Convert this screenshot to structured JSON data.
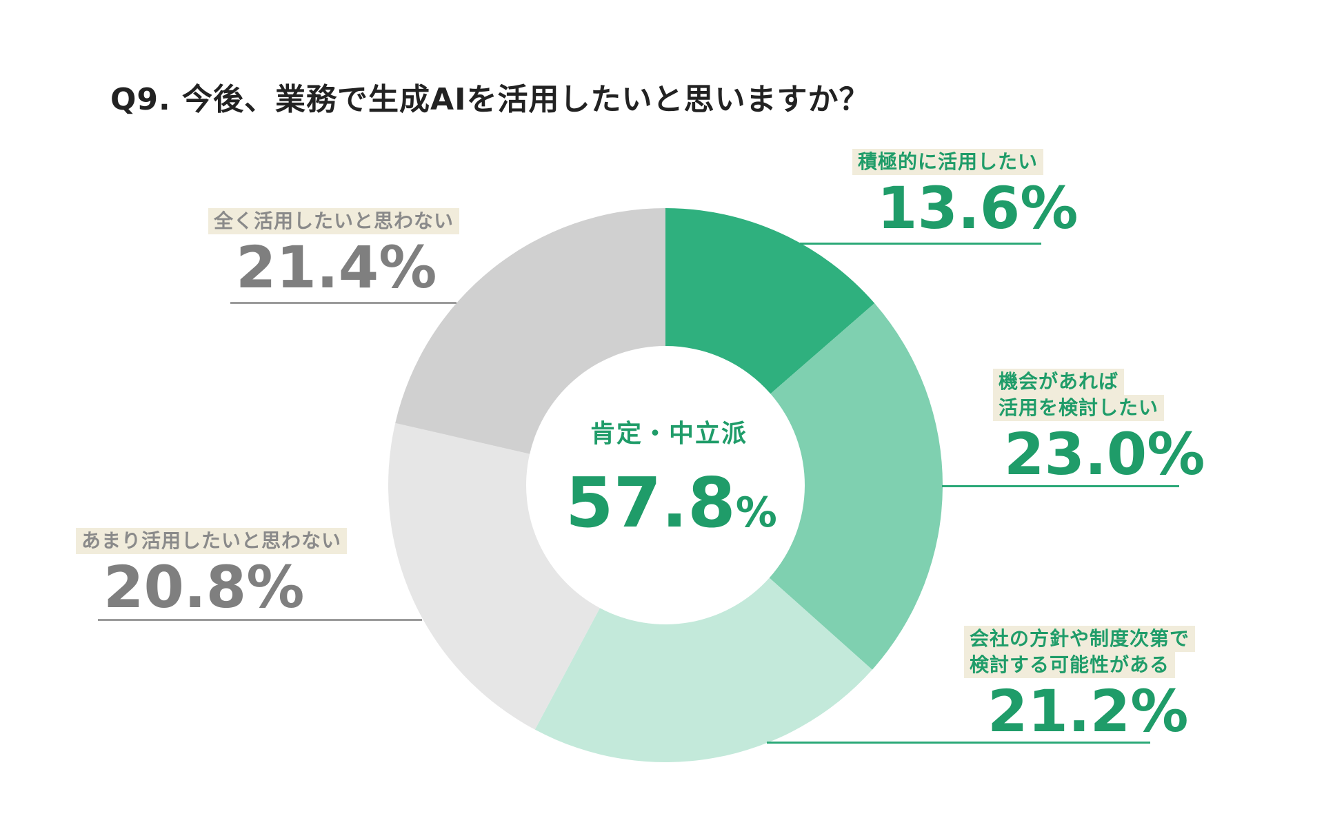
{
  "chart_data": {
    "type": "donut",
    "title": "Q9. 今後、業務で生成AIを活用したいと思いますか？",
    "center": {
      "label": "肯定・中立派",
      "value": "57.8",
      "unit": "%"
    },
    "slices": [
      {
        "label_lines": [
          "積極的に活用したい"
        ],
        "value": 13.6,
        "display": "13.6%",
        "color": "#2fb07e",
        "group": "green"
      },
      {
        "label_lines": [
          "機会があれば",
          "活用を検討したい"
        ],
        "value": 23.0,
        "display": "23.0%",
        "color": "#7fd0b0",
        "group": "green"
      },
      {
        "label_lines": [
          "会社の方針や制度次第で",
          "検討する可能性がある"
        ],
        "value": 21.2,
        "display": "21.2%",
        "color": "#c3e9da",
        "group": "green"
      },
      {
        "label_lines": [
          "あまり活用したいと思わない"
        ],
        "value": 20.8,
        "display": "20.8%",
        "color": "#e6e6e6",
        "group": "gray"
      },
      {
        "label_lines": [
          "全く活用したいと思わない"
        ],
        "value": 21.4,
        "display": "21.4%",
        "color": "#d0d0d0",
        "group": "gray"
      }
    ]
  }
}
